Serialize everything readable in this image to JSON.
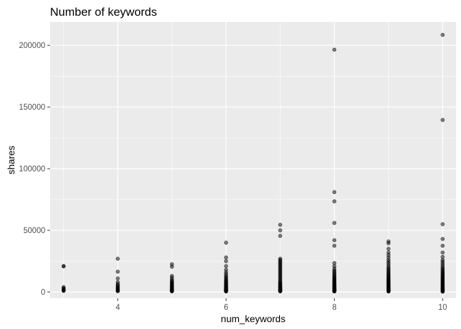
{
  "chart_data": {
    "type": "scatter",
    "title": "Number of keywords",
    "xlabel": "num_keywords",
    "ylabel": "shares",
    "xlim": [
      2.75,
      10.25
    ],
    "ylim": [
      -5000,
      219000
    ],
    "x_ticks": [
      4,
      6,
      8,
      10
    ],
    "x_tick_labels": [
      "4",
      "6",
      "8",
      "10"
    ],
    "y_ticks": [
      0,
      50000,
      100000,
      150000,
      200000
    ],
    "y_tick_labels": [
      "0",
      "50000",
      "100000",
      "150000",
      "200000"
    ],
    "grid": true,
    "legend": "none",
    "colors": {
      "panel_bg": "#EBEBEB",
      "grid_major": "#FFFFFF",
      "point": "#000000",
      "point_alpha": 0.5,
      "tick_text": "#4D4D4D",
      "tick_mark": "#333333"
    },
    "series": [
      {
        "x": [
          3,
          3,
          3,
          3,
          3,
          3,
          3,
          3,
          3
        ],
        "y": [
          21000,
          20800,
          4000,
          3000,
          2500,
          2000,
          1600,
          1200,
          900
        ]
      },
      {
        "x": [
          4,
          4,
          4,
          4,
          4,
          4,
          4,
          4,
          4,
          4,
          4,
          4,
          4,
          4,
          4
        ],
        "y": [
          27000,
          16500,
          11000,
          8000,
          6500,
          5500,
          4700,
          4000,
          3300,
          2700,
          2100,
          1600,
          1200,
          900,
          600
        ]
      },
      {
        "x": [
          5,
          5,
          5,
          5,
          5,
          5,
          5,
          5,
          5,
          5,
          5,
          5,
          5,
          5,
          5,
          5,
          5,
          5,
          5,
          5,
          5,
          5,
          5,
          5,
          5
        ],
        "y": [
          22500,
          20500,
          13000,
          11500,
          10000,
          9000,
          8200,
          7500,
          6800,
          6200,
          5600,
          5000,
          4500,
          4000,
          3500,
          3100,
          2700,
          2300,
          2000,
          1700,
          1400,
          1100,
          900,
          700,
          500
        ]
      },
      {
        "x": [
          6,
          6,
          6,
          6,
          6,
          6,
          6,
          6,
          6,
          6,
          6,
          6,
          6,
          6,
          6,
          6,
          6,
          6,
          6,
          6,
          6,
          6,
          6,
          6,
          6,
          6,
          6,
          6,
          6,
          6,
          6,
          6,
          6,
          6,
          6
        ],
        "y": [
          40000,
          28000,
          25000,
          21000,
          18000,
          16000,
          14500,
          13000,
          12000,
          11000,
          10000,
          9200,
          8500,
          7800,
          7200,
          6600,
          6000,
          5500,
          5000,
          4500,
          4100,
          3700,
          3300,
          3000,
          2700,
          2400,
          2100,
          1800,
          1600,
          1400,
          1200,
          1000,
          800,
          600,
          400
        ]
      },
      {
        "x": [
          7,
          7,
          7,
          7,
          7,
          7,
          7,
          7,
          7,
          7,
          7,
          7,
          7,
          7,
          7,
          7,
          7,
          7,
          7,
          7,
          7,
          7,
          7,
          7,
          7,
          7,
          7,
          7,
          7,
          7,
          7,
          7,
          7,
          7,
          7,
          7,
          7,
          7,
          7,
          7,
          7
        ],
        "y": [
          54500,
          50000,
          45500,
          27000,
          26000,
          25000,
          24000,
          23000,
          22000,
          21000,
          20000,
          19000,
          18000,
          17000,
          16000,
          15000,
          14000,
          13000,
          12000,
          11000,
          10000,
          9000,
          8200,
          7500,
          6800,
          6200,
          5600,
          5000,
          4500,
          4000,
          3500,
          3100,
          2700,
          2300,
          2000,
          1700,
          1400,
          1100,
          900,
          700,
          500
        ]
      },
      {
        "x": [
          8,
          8,
          8,
          8,
          8,
          8,
          8,
          8,
          8,
          8,
          8,
          8,
          8,
          8,
          8,
          8,
          8,
          8,
          8,
          8,
          8,
          8,
          8,
          8,
          8,
          8,
          8,
          8,
          8,
          8,
          8,
          8,
          8,
          8,
          8,
          8,
          8,
          8,
          8,
          8,
          8,
          8,
          8,
          8,
          8,
          8,
          8,
          8,
          8,
          8
        ],
        "y": [
          196500,
          81000,
          73500,
          56000,
          42000,
          37500,
          23500,
          21000,
          19000,
          17500,
          16500,
          15500,
          14500,
          13500,
          12800,
          12000,
          11300,
          10600,
          10000,
          9400,
          8800,
          8300,
          7800,
          7300,
          6800,
          6400,
          6000,
          5600,
          5200,
          4800,
          4500,
          4200,
          3900,
          3600,
          3300,
          3000,
          2800,
          2600,
          2400,
          2200,
          2000,
          1800,
          1600,
          1400,
          1200,
          1000,
          850,
          700,
          550,
          400
        ]
      },
      {
        "x": [
          9,
          9,
          9,
          9,
          9,
          9,
          9,
          9,
          9,
          9,
          9,
          9,
          9,
          9,
          9,
          9,
          9,
          9,
          9,
          9,
          9,
          9,
          9,
          9,
          9,
          9,
          9,
          9,
          9,
          9,
          9,
          9,
          9,
          9,
          9,
          9,
          9,
          9,
          9,
          9,
          9,
          9,
          9,
          9,
          9,
          9,
          9,
          9,
          9,
          9,
          9,
          9,
          9,
          9,
          9
        ],
        "y": [
          41000,
          39500,
          35000,
          32000,
          30000,
          28000,
          26000,
          24500,
          23000,
          21500,
          20000,
          19000,
          18000,
          17000,
          16000,
          15200,
          14400,
          13600,
          12900,
          12200,
          11500,
          10900,
          10300,
          9700,
          9200,
          8700,
          8200,
          7700,
          7200,
          6800,
          6400,
          6000,
          5600,
          5200,
          4800,
          4500,
          4200,
          3900,
          3600,
          3300,
          3000,
          2800,
          2600,
          2400,
          2200,
          2000,
          1800,
          1600,
          1400,
          1200,
          1000,
          850,
          700,
          550,
          400
        ]
      },
      {
        "x": [
          10,
          10,
          10,
          10,
          10,
          10,
          10,
          10,
          10,
          10,
          10,
          10,
          10,
          10,
          10,
          10,
          10,
          10,
          10,
          10,
          10,
          10,
          10,
          10,
          10,
          10,
          10,
          10,
          10,
          10,
          10,
          10,
          10,
          10,
          10,
          10,
          10,
          10,
          10,
          10,
          10,
          10,
          10,
          10,
          10,
          10,
          10,
          10,
          10,
          10,
          10,
          10,
          10,
          10,
          10,
          10,
          10,
          10,
          10,
          10
        ],
        "y": [
          208500,
          139500,
          55000,
          43000,
          37500,
          32000,
          28500,
          26000,
          24500,
          23000,
          21500,
          20000,
          19000,
          18000,
          17000,
          16200,
          15400,
          14600,
          13900,
          13200,
          12500,
          11900,
          11300,
          10700,
          10200,
          9700,
          9200,
          8700,
          8200,
          7700,
          7300,
          6900,
          6500,
          6100,
          5700,
          5300,
          5000,
          4700,
          4400,
          4100,
          3800,
          3500,
          3200,
          3000,
          2800,
          2600,
          2400,
          2200,
          2000,
          1800,
          1600,
          1400,
          1250,
          1100,
          950,
          800,
          650,
          500,
          400,
          300
        ]
      }
    ]
  }
}
